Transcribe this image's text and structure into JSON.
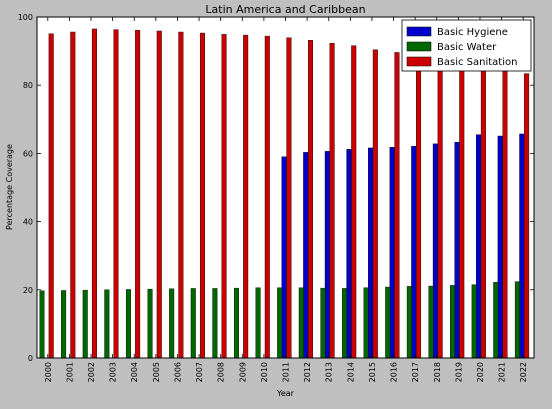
{
  "chart_data": {
    "type": "bar",
    "title": "Latin America and Caribbean",
    "xlabel": "Year",
    "ylabel": "Percentage Coverage",
    "ylim": [
      0,
      100
    ],
    "yticks": [
      0,
      20,
      40,
      60,
      80,
      100
    ],
    "grid": false,
    "legend_position": "top-right",
    "categories": [
      "2000",
      "2001",
      "2002",
      "2003",
      "2004",
      "2005",
      "2006",
      "2007",
      "2008",
      "2009",
      "2010",
      "2011",
      "2012",
      "2013",
      "2014",
      "2015",
      "2016",
      "2017",
      "2018",
      "2019",
      "2020",
      "2021",
      "2022"
    ],
    "series": [
      {
        "name": "Basic Hygiene",
        "color": "#0000cc",
        "values": [
          null,
          null,
          null,
          null,
          null,
          null,
          null,
          null,
          null,
          null,
          null,
          59.0,
          60.3,
          60.6,
          61.2,
          61.6,
          61.8,
          62.1,
          62.8,
          63.3,
          65.5,
          65.1,
          65.7
        ]
      },
      {
        "name": "Basic Water",
        "color": "#006600",
        "values": [
          19.7,
          19.8,
          19.9,
          20.0,
          20.1,
          20.2,
          20.3,
          20.4,
          20.4,
          20.5,
          20.6,
          20.6,
          20.6,
          20.5,
          20.4,
          20.6,
          20.8,
          21.0,
          21.1,
          21.3,
          21.5,
          22.2,
          22.4
        ]
      },
      {
        "name": "Basic Sanitation",
        "color": "#cc0000",
        "values": [
          95.1,
          95.6,
          96.5,
          96.3,
          96.1,
          95.9,
          95.6,
          95.3,
          94.9,
          94.7,
          94.4,
          93.9,
          93.2,
          92.3,
          91.6,
          90.4,
          89.6,
          88.2,
          87.4,
          86.6,
          85.8,
          84.6,
          83.4
        ]
      }
    ]
  }
}
